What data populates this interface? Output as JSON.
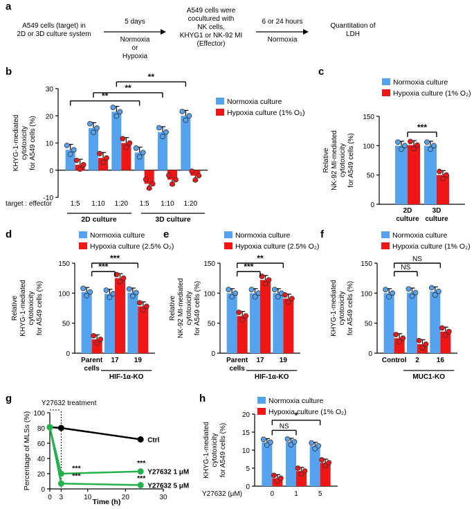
{
  "colors": {
    "normoxia": "#55a2ee",
    "hypoxia": "#f01616",
    "green": "#23b14b",
    "black": "#000000"
  },
  "panel_a": {
    "letter": "a",
    "box1": [
      "A549 cells (target) in",
      "2D or 3D culture system"
    ],
    "arrow1_above": "5 days",
    "arrow1_below": [
      "Normoxia",
      "or",
      "Hypoxia"
    ],
    "box2": [
      "A549 cells were",
      "cocultured with",
      "NK cells,",
      "KHYG1 or NK-92 MI",
      "(Effector)"
    ],
    "arrow2_above": "6 or 24 hours",
    "arrow2_below": "Normoxia",
    "box3": [
      "Quantitation of",
      "LDH"
    ]
  },
  "chart_data": [
    {
      "panel": "b",
      "type": "bar",
      "ylabel": [
        "KHYG-1-mediated",
        "cytotoxicity",
        "for A549 cells (%)"
      ],
      "ylim": [
        -10,
        30
      ],
      "yticks": [
        "30",
        "20",
        "10",
        "0",
        "-10"
      ],
      "categories": [
        "1:5",
        "1:10",
        "1:20",
        "1:5",
        "1:10",
        "1:20"
      ],
      "row_label": "target : effector",
      "groups": [
        "2D culture",
        "3D culture"
      ],
      "legend": [
        "Normoxia culture",
        "Hypoxia culture (1% O₂)"
      ],
      "series": [
        {
          "name": "Normoxia culture",
          "values": [
            7.5,
            15.5,
            21.5,
            6.5,
            14,
            20
          ]
        },
        {
          "name": "Hypoxia culture (1% O₂)",
          "values": [
            2,
            4.5,
            10,
            -5,
            -3.5,
            -2
          ]
        }
      ],
      "significance": [
        "**",
        "**",
        "**"
      ]
    },
    {
      "panel": "c",
      "type": "bar",
      "ylabel": [
        "Relative",
        "NK-92 MI-mediated",
        "cytotoxicity",
        "for A549 cells (%)"
      ],
      "ylim": [
        0,
        150
      ],
      "yticks": [
        "150",
        "100",
        "50",
        "0"
      ],
      "categories": [
        [
          "2D",
          "culture"
        ],
        [
          "3D",
          "culture"
        ]
      ],
      "legend": [
        "Normoxia culture",
        "Hypoxia culture (1% O₂)"
      ],
      "series": [
        {
          "name": "Normoxia culture",
          "values": [
            100,
            100
          ]
        },
        {
          "name": "Hypoxia culture (1% O₂)",
          "values": [
            101,
            50
          ]
        }
      ],
      "significance": [
        "***"
      ]
    },
    {
      "panel": "d",
      "type": "bar",
      "ylabel": [
        "Relative",
        "KHYG-1-mediated",
        "cytotoxicity",
        "for A549 cells (%)"
      ],
      "ylim": [
        0,
        150
      ],
      "yticks": [
        "150",
        "100",
        "50",
        "0"
      ],
      "categories": [
        [
          "Parent",
          "cells"
        ],
        "17",
        "19"
      ],
      "group_label": "HIF-1α-KO",
      "legend": [
        "Normoxia culture",
        "Hypoxia culture (2.5% O₂)"
      ],
      "series": [
        {
          "name": "Normoxia culture",
          "values": [
            102,
            99,
            101
          ]
        },
        {
          "name": "Hypoxia culture (2.5% O₂)",
          "values": [
            23,
            125,
            78
          ]
        }
      ],
      "significance": [
        "***",
        "***"
      ]
    },
    {
      "panel": "e",
      "type": "bar",
      "ylabel": [
        "Relative",
        "NK-92 MI-mediated",
        "cytotoxicity",
        "for A549 cells (%)"
      ],
      "ylim": [
        0,
        150
      ],
      "yticks": [
        "150",
        "100",
        "50",
        "0"
      ],
      "categories": [
        [
          "Parent",
          "cells"
        ],
        "17",
        "19"
      ],
      "group_label": "HIF-1α-KO",
      "legend": [
        "Normoxia culture",
        "Hypoxia culture (2.5% O₂)"
      ],
      "series": [
        {
          "name": "Normoxia culture",
          "values": [
            100,
            100,
            100
          ]
        },
        {
          "name": "Hypoxia culture (2.5% O₂)",
          "values": [
            62,
            122,
            91
          ]
        }
      ],
      "significance": [
        "***",
        "**"
      ]
    },
    {
      "panel": "f",
      "type": "bar",
      "ylabel": [
        "KHYG-1-mediated",
        "cytotoxicity",
        "for A549 cells (%)"
      ],
      "ylim": [
        0,
        150
      ],
      "yticks": [
        "150",
        "100",
        "50",
        "0"
      ],
      "categories": [
        "Control",
        "2",
        "16"
      ],
      "group_label": "MUC1-KO",
      "legend": [
        "Normoxia culture",
        "Hypoxia culture (1% O₂)"
      ],
      "series": [
        {
          "name": "Normoxia culture",
          "values": [
            100,
            101,
            103
          ]
        },
        {
          "name": "Hypoxia culture (1% O₂)",
          "values": [
            25,
            15,
            36
          ]
        }
      ],
      "significance": [
        "NS",
        "NS"
      ]
    },
    {
      "panel": "g",
      "type": "line",
      "ylabel": "Percentage of MLSs (%)",
      "xlabel": "Time (h)",
      "xlim": [
        0,
        30
      ],
      "ylim": [
        0,
        100
      ],
      "xticks": [
        "0",
        "3",
        "10",
        "20",
        "30"
      ],
      "yticks": [
        "100",
        "80",
        "60",
        "40",
        "20",
        "0"
      ],
      "annotation": "Y27632 treatment",
      "series": [
        {
          "name": "Ctrl",
          "x": [
            0,
            3,
            24
          ],
          "y": [
            81,
            80,
            65
          ]
        },
        {
          "name": "Y27632 1 μM",
          "x": [
            0,
            3,
            24
          ],
          "y": [
            81,
            20,
            23
          ]
        },
        {
          "name": "Y27632 5 μM",
          "x": [
            0,
            3,
            24
          ],
          "y": [
            81,
            7,
            5
          ]
        }
      ],
      "significance": [
        "***",
        "***",
        "***",
        "***"
      ]
    },
    {
      "panel": "h",
      "type": "bar",
      "ylabel": [
        "KHYG-1-mediated",
        "cytotoxicity",
        "for A549 cells (%)"
      ],
      "ylim": [
        0,
        20
      ],
      "yticks": [
        "20",
        "15",
        "10",
        "5",
        "0"
      ],
      "categories": [
        "0",
        "1",
        "5"
      ],
      "row_label": "Y27632 (μM)",
      "legend": [
        "Normoxia culture",
        "Hypoxia culture (1% O₂)"
      ],
      "series": [
        {
          "name": "Normoxia culture",
          "values": [
            12.2,
            12.3,
            11.2
          ]
        },
        {
          "name": "Hypoxia culture (1% O₂)",
          "values": [
            2.2,
            4.2,
            6.5
          ]
        }
      ],
      "significance": [
        "NS",
        "*"
      ]
    }
  ]
}
